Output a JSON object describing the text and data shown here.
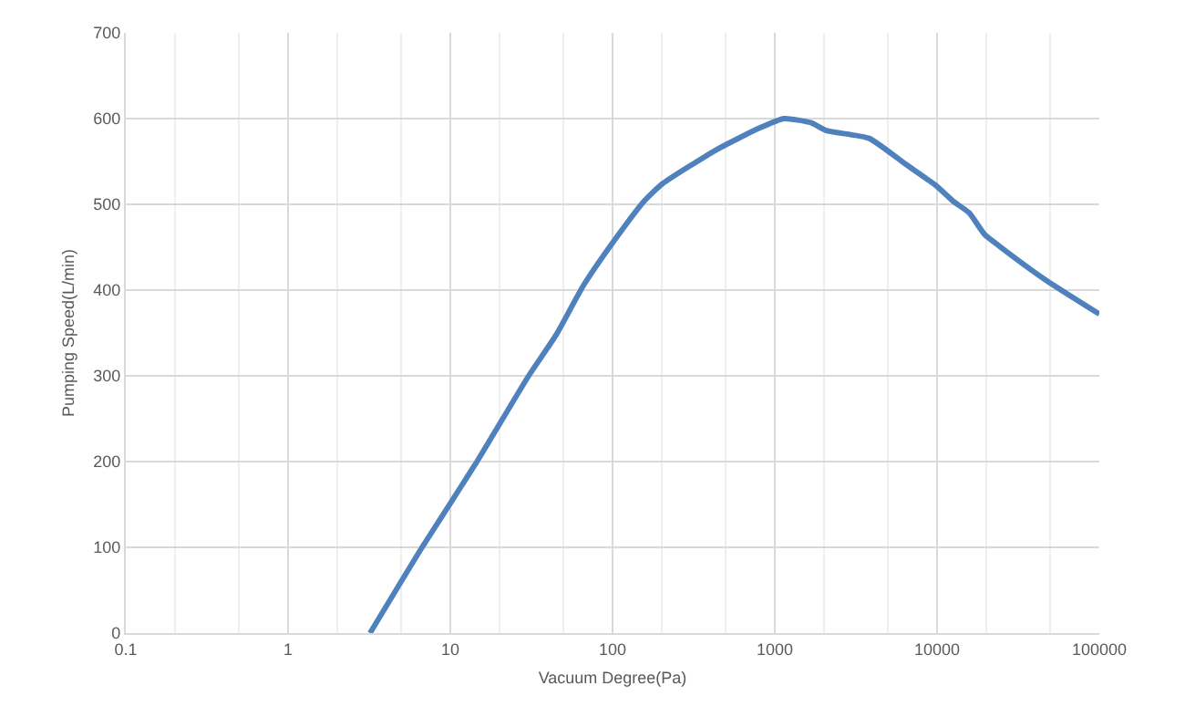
{
  "chart_data": {
    "type": "line",
    "xlabel": "Vacuum Degree(Pa)",
    "ylabel": "Pumping Speed(L/min)",
    "log": "x",
    "grid": true,
    "legend": false,
    "marker": "none",
    "line_style": "solid",
    "xlim": [
      0.1,
      100000
    ],
    "xticks": [
      0.1,
      1,
      10,
      100,
      1000,
      10000,
      100000
    ],
    "ylim": [
      0,
      700
    ],
    "yticks": [
      0,
      100,
      200,
      300,
      400,
      500,
      600,
      700
    ],
    "series": [
      {
        "color": "#4f81bd",
        "x": [
          3.2,
          6.7,
          14.6,
          30.4,
          45,
          66,
          100,
          157,
          203,
          440,
          805,
          1140,
          1680,
          2080,
          3810,
          6380,
          9840,
          12700,
          15800,
          19600,
          24300,
          46500,
          100000
        ],
        "values": [
          0,
          100,
          200,
          300,
          348,
          405,
          455,
          504,
          524,
          564,
          589,
          600,
          595,
          586,
          577,
          547,
          522,
          503,
          490,
          465,
          451,
          412,
          372
        ]
      }
    ]
  }
}
